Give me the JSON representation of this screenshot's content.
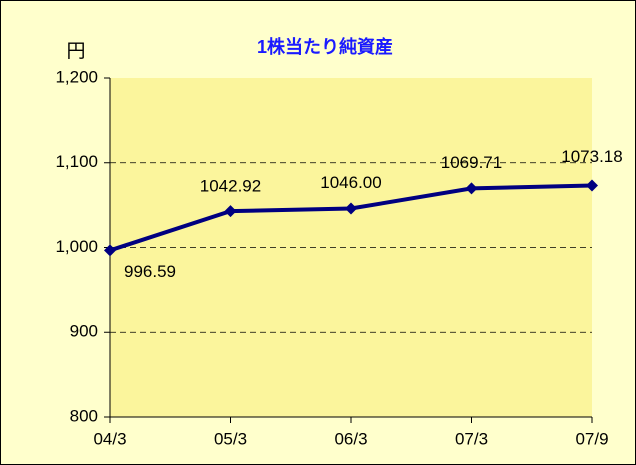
{
  "chart_data": {
    "type": "line",
    "title": "1株当たり純資産",
    "y_unit": "円",
    "categories": [
      "04/3",
      "05/3",
      "06/3",
      "07/3",
      "07/9"
    ],
    "series": [
      {
        "name": "1株当たり純資産",
        "color": "#000080",
        "values": [
          996.59,
          1042.92,
          1046.0,
          1069.71,
          1073.18
        ],
        "value_labels": [
          "996.59",
          "1042.92",
          "1046.00",
          "1069.71",
          "1073.18"
        ]
      }
    ],
    "ylim": [
      800,
      1200
    ],
    "yticks": [
      800,
      900,
      {
        "value": 1000,
        "label": "1,000"
      },
      {
        "value": 1100,
        "label": "1,100"
      },
      {
        "value": 1200,
        "label": "1,200"
      }
    ],
    "grid": true
  }
}
